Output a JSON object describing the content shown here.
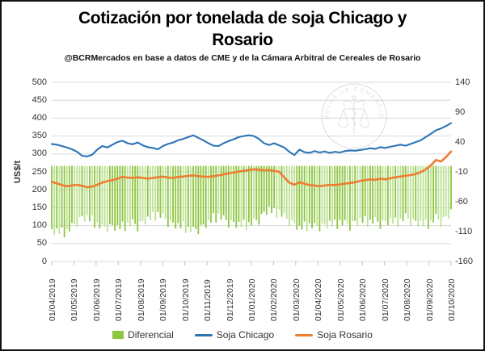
{
  "header": {
    "title": "Cotización por tonelada de soja Chicago y Rosario",
    "subtitle": "@BCRMercados  en base a datos de CME y de la Cámara Arbitral  de Cereales de Rosario"
  },
  "watermark": {
    "text": "BOLSA DE COMERCIO DE ROSARIO",
    "color": "#c7cbd3"
  },
  "legend": {
    "items": [
      {
        "label": "Diferencial",
        "swatch": "bar",
        "color": "#8dc63f"
      },
      {
        "label": "Soja Chicago",
        "swatch": "line",
        "color": "#2e75b6"
      },
      {
        "label": "Soja Rosario",
        "swatch": "line",
        "color": "#ed7d31"
      }
    ]
  },
  "chart_data": {
    "type": "bar",
    "subtype": "combo-bar-line-dual-axis",
    "title": "Cotización por tonelada de soja Chicago y Rosario",
    "xlabel": "",
    "ylabel": "US$/t",
    "grid": true,
    "legend_position": "bottom",
    "x_tick_labels": [
      "01/04/2019",
      "01/05/2019",
      "01/06/2019",
      "01/07/2019",
      "01/08/2019",
      "01/09/2019",
      "01/10/2019",
      "01/11/2019",
      "01/12/2019",
      "01/01/2020",
      "01/02/2020",
      "01/03/2020",
      "01/04/2020",
      "01/05/2020",
      "01/06/2020",
      "01/07/2020",
      "01/08/2020",
      "01/09/2020",
      "01/10/2020"
    ],
    "y_left": {
      "label": "US$/t",
      "min": 0,
      "max": 500,
      "step": 50,
      "ticks": [
        "500",
        "450",
        "400",
        "350",
        "300",
        "250",
        "200",
        "150",
        "100",
        "50",
        "0"
      ]
    },
    "y_right": {
      "min": -160,
      "max": 140,
      "step": 50,
      "ticks": [
        "140",
        "90",
        "40",
        "-10",
        "-60",
        "-110",
        "-160"
      ]
    },
    "series": [
      {
        "name": "Soja Chicago",
        "type": "line",
        "axis": "left",
        "color": "#2e75b6",
        "values": [
          328,
          326,
          322,
          318,
          313,
          306,
          295,
          293,
          298,
          312,
          322,
          318,
          326,
          333,
          337,
          330,
          327,
          332,
          324,
          319,
          317,
          313,
          322,
          328,
          332,
          338,
          342,
          347,
          352,
          345,
          338,
          330,
          323,
          322,
          330,
          336,
          341,
          347,
          350,
          352,
          350,
          342,
          330,
          325,
          330,
          324,
          318,
          306,
          297,
          312,
          305,
          303,
          308,
          304,
          307,
          303,
          306,
          304,
          308,
          310,
          309,
          311,
          313,
          316,
          314,
          319,
          317,
          320,
          323,
          326,
          323,
          328,
          333,
          338,
          347,
          356,
          366,
          371,
          378,
          386
        ]
      },
      {
        "name": "Soja Rosario",
        "type": "line",
        "axis": "left",
        "color": "#ed7d31",
        "values": [
          222,
          218,
          213,
          210,
          212,
          214,
          211,
          207,
          209,
          214,
          220,
          224,
          227,
          231,
          236,
          234,
          233,
          235,
          233,
          231,
          233,
          235,
          237,
          234,
          233,
          236,
          237,
          239,
          240,
          238,
          237,
          236,
          238,
          240,
          243,
          246,
          248,
          251,
          253,
          255,
          257,
          256,
          254,
          255,
          253,
          250,
          235,
          220,
          214,
          221,
          217,
          213,
          212,
          210,
          212,
          214,
          213,
          215,
          217,
          219,
          221,
          225,
          227,
          229,
          228,
          231,
          229,
          232,
          235,
          237,
          239,
          241,
          244,
          249,
          257,
          268,
          283,
          279,
          291,
          307
        ]
      },
      {
        "name": "Diferencial",
        "type": "bar",
        "axis": "right",
        "color": "#8dc63f",
        "color_alt": "#bde295",
        "baseline": 0,
        "values": [
          -106,
          -108,
          -110,
          -108,
          -100,
          -90,
          -84,
          -86,
          -90,
          -96,
          -102,
          -98,
          -99,
          -102,
          -100,
          -97,
          -94,
          -97,
          -92,
          -88,
          -84,
          -79,
          -84,
          -90,
          -95,
          -99,
          -100,
          -104,
          -106,
          -102,
          -98,
          -94,
          -86,
          -82,
          -87,
          -91,
          -94,
          -97,
          -97,
          -96,
          -92,
          -86,
          -77,
          -71,
          -77,
          -75,
          -84,
          -88,
          -95,
          -103,
          -100,
          -98,
          -100,
          -97,
          -98,
          -95,
          -97,
          -93,
          -95,
          -96,
          -92,
          -90,
          -91,
          -92,
          -90,
          -93,
          -92,
          -91,
          -93,
          -90,
          -84,
          -88,
          -92,
          -95,
          -97,
          -93,
          -85,
          -90,
          -84,
          -76
        ]
      }
    ],
    "layout_hints": {
      "bar_texture": [
        0,
        -13,
        5,
        -8,
        11,
        -17,
        3,
        -9,
        7,
        -3,
        -20,
        2
      ],
      "grid_color": "#d9d9d9",
      "tick_color": "#bfbfbf"
    }
  }
}
